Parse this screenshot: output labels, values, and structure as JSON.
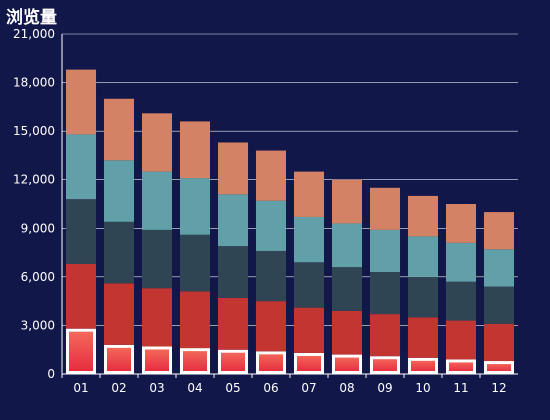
{
  "chart_data": {
    "type": "bar",
    "stacked": true,
    "title": "浏览量",
    "categories": [
      "01",
      "02",
      "03",
      "04",
      "05",
      "06",
      "07",
      "08",
      "09",
      "10",
      "11",
      "12"
    ],
    "ylim": [
      0,
      21000
    ],
    "yticks": [
      "0",
      "3,000",
      "6,000",
      "9,000",
      "12,000",
      "15,000",
      "18,000",
      "21,000"
    ],
    "grid": "horizontal",
    "legend": "none",
    "series": [
      {
        "color": "#ee3e3e",
        "values": [
          2800,
          1800,
          1700,
          1600,
          1500,
          1400,
          1300,
          1200,
          1100,
          1000,
          900,
          800
        ]
      },
      {
        "color": "#c23531",
        "values": [
          4000,
          3800,
          3600,
          3500,
          3200,
          3100,
          2800,
          2700,
          2600,
          2500,
          2400,
          2300
        ]
      },
      {
        "color": "#2f4554",
        "values": [
          4000,
          3800,
          3600,
          3500,
          3200,
          3100,
          2800,
          2700,
          2600,
          2500,
          2400,
          2300
        ]
      },
      {
        "color": "#61a0a8",
        "values": [
          4000,
          3800,
          3600,
          3500,
          3200,
          3100,
          2800,
          2700,
          2600,
          2500,
          2400,
          2300
        ]
      },
      {
        "color": "#d48265",
        "values": [
          4000,
          3800,
          3600,
          3500,
          3200,
          3100,
          2800,
          2700,
          2600,
          2500,
          2400,
          2300
        ]
      }
    ]
  }
}
